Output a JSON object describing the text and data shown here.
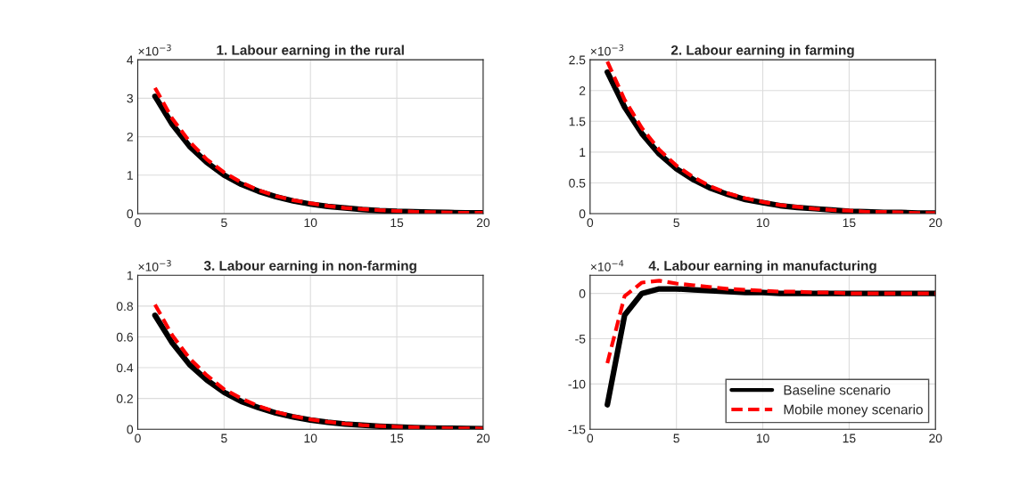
{
  "chart_data": [
    {
      "type": "line",
      "title": "1. Labour earning in the rural",
      "annotations": [
        "×10$^{−3}$"
      ],
      "x": [
        1,
        2,
        3,
        4,
        5,
        6,
        7,
        8,
        9,
        10,
        11,
        12,
        13,
        14,
        15,
        16,
        17,
        18,
        19,
        20
      ],
      "xlim": [
        0,
        20
      ],
      "xticks": [
        0,
        5,
        10,
        15,
        20
      ],
      "ylim": [
        0,
        4
      ],
      "yticks": [
        0,
        1,
        2,
        3,
        4
      ],
      "grid": true,
      "series": [
        {
          "color": "#000000",
          "line_style": "solid",
          "values": [
            3.05,
            2.32,
            1.75,
            1.33,
            1.0,
            0.76,
            0.58,
            0.44,
            0.33,
            0.25,
            0.19,
            0.15,
            0.11,
            0.08,
            0.06,
            0.05,
            0.04,
            0.03,
            0.02,
            0.02
          ]
        },
        {
          "color": "#ff0000",
          "line_style": "dashed",
          "values": [
            3.27,
            2.47,
            1.87,
            1.41,
            1.07,
            0.81,
            0.61,
            0.46,
            0.35,
            0.27,
            0.2,
            0.15,
            0.12,
            0.09,
            0.07,
            0.05,
            0.04,
            0.03,
            0.02,
            0.02
          ]
        }
      ]
    },
    {
      "type": "line",
      "title": "2. Labour earning in farming",
      "annotations": [
        "×10$^{−3}$"
      ],
      "x": [
        1,
        2,
        3,
        4,
        5,
        6,
        7,
        8,
        9,
        10,
        11,
        12,
        13,
        14,
        15,
        16,
        17,
        18,
        19,
        20
      ],
      "xlim": [
        0,
        20
      ],
      "xticks": [
        0,
        5,
        10,
        15,
        20
      ],
      "ylim": [
        0,
        2.5
      ],
      "yticks": [
        0,
        0.5,
        1,
        1.5,
        2,
        2.5
      ],
      "grid": true,
      "series": [
        {
          "color": "#000000",
          "line_style": "solid",
          "values": [
            2.3,
            1.73,
            1.3,
            0.97,
            0.73,
            0.55,
            0.41,
            0.31,
            0.23,
            0.18,
            0.13,
            0.1,
            0.08,
            0.06,
            0.04,
            0.03,
            0.02,
            0.02,
            0.01,
            0.01
          ]
        },
        {
          "color": "#ff0000",
          "line_style": "dashed",
          "values": [
            2.47,
            1.85,
            1.39,
            1.04,
            0.78,
            0.59,
            0.44,
            0.33,
            0.25,
            0.19,
            0.14,
            0.11,
            0.08,
            0.06,
            0.05,
            0.03,
            0.03,
            0.02,
            0.01,
            0.01
          ]
        }
      ]
    },
    {
      "type": "line",
      "title": "3. Labour earning in non-farming",
      "annotations": [
        "×10$^{−3}$"
      ],
      "x": [
        1,
        2,
        3,
        4,
        5,
        6,
        7,
        8,
        9,
        10,
        11,
        12,
        13,
        14,
        15,
        16,
        17,
        18,
        19,
        20
      ],
      "xlim": [
        0,
        20
      ],
      "xticks": [
        0,
        5,
        10,
        15,
        20
      ],
      "ylim": [
        0,
        1
      ],
      "yticks": [
        0,
        0.2,
        0.4,
        0.6,
        0.8,
        1
      ],
      "grid": true,
      "series": [
        {
          "color": "#000000",
          "line_style": "solid",
          "values": [
            0.74,
            0.56,
            0.42,
            0.32,
            0.24,
            0.18,
            0.14,
            0.105,
            0.08,
            0.06,
            0.045,
            0.034,
            0.026,
            0.02,
            0.015,
            0.011,
            0.008,
            0.006,
            0.005,
            0.004
          ]
        },
        {
          "color": "#ff0000",
          "line_style": "dashed",
          "values": [
            0.81,
            0.61,
            0.46,
            0.35,
            0.26,
            0.2,
            0.15,
            0.113,
            0.085,
            0.064,
            0.048,
            0.036,
            0.027,
            0.021,
            0.016,
            0.012,
            0.009,
            0.007,
            0.005,
            0.004
          ]
        }
      ]
    },
    {
      "type": "line",
      "title": "4. Labour earning in manufacturing",
      "annotations": [
        "×10$^{−4}$"
      ],
      "x": [
        1,
        2,
        3,
        4,
        5,
        6,
        7,
        8,
        9,
        10,
        11,
        12,
        13,
        14,
        15,
        16,
        17,
        18,
        19,
        20
      ],
      "xlim": [
        0,
        20
      ],
      "xticks": [
        0,
        5,
        10,
        15,
        20
      ],
      "ylim": [
        -15,
        2
      ],
      "yticks": [
        -15,
        -10,
        -5,
        0
      ],
      "grid": true,
      "legend": "lower right",
      "series": [
        {
          "name": "Baseline scenario",
          "color": "#000000",
          "line_style": "solid",
          "values": [
            -12.3,
            -2.4,
            0,
            0.5,
            0.5,
            0.4,
            0.3,
            0.2,
            0.1,
            0.1,
            0,
            0,
            0,
            0,
            0,
            0,
            0,
            0,
            0,
            0
          ]
        },
        {
          "name": "Mobile money scenario",
          "color": "#ff0000",
          "line_style": "dashed",
          "values": [
            -7.7,
            -0.3,
            1.2,
            1.4,
            1.1,
            0.9,
            0.7,
            0.5,
            0.4,
            0.3,
            0.2,
            0.2,
            0.1,
            0.1,
            0,
            0,
            0,
            0,
            0,
            0
          ]
        }
      ]
    }
  ]
}
